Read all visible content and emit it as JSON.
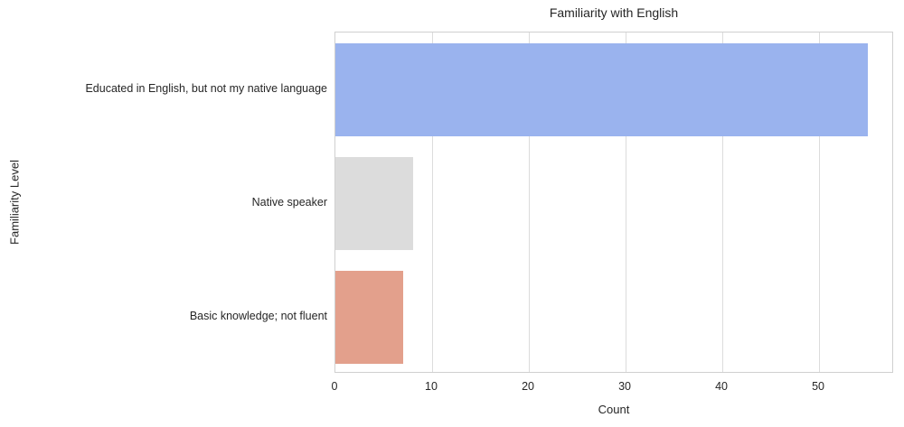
{
  "chart_data": {
    "type": "bar",
    "orientation": "horizontal",
    "title": "Familiarity with English",
    "xlabel": "Count",
    "ylabel": "Familiarity Level",
    "categories": [
      "Educated in English, but not my native language",
      "Native speaker",
      "Basic knowledge; not fluent"
    ],
    "values": [
      55,
      8,
      7
    ],
    "bar_colors": [
      "#9ab3ee",
      "#dcdcdc",
      "#e3a08c"
    ],
    "xticks": [
      0,
      10,
      20,
      30,
      40,
      50
    ],
    "xlim": [
      0,
      57.75
    ],
    "grid": true,
    "gridline_color": "#dcdcdc",
    "plot_background": "#ffffff",
    "spine_color": "#d0d0d0",
    "legend": false
  }
}
